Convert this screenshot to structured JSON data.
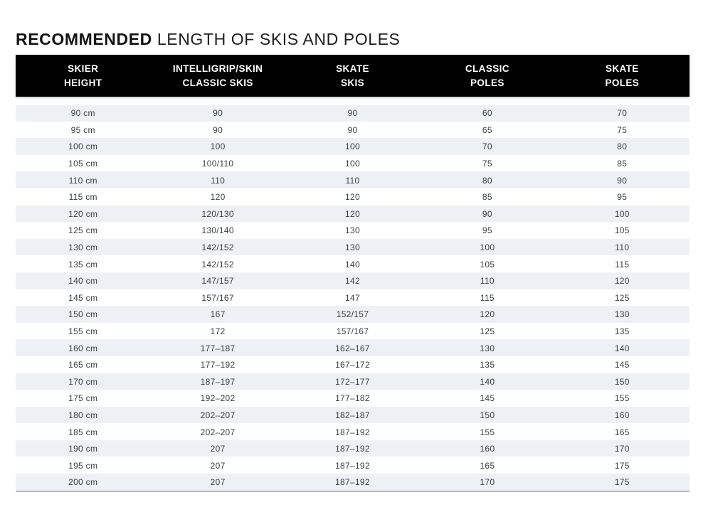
{
  "title": {
    "bold": "RECOMMENDED",
    "light": "LENGTH OF SKIS AND POLES"
  },
  "table": {
    "headers": [
      {
        "label": "SKIER\nHEIGHT"
      },
      {
        "label": "INTELLIGRIP/SKIN\nCLASSIC SKIS"
      },
      {
        "label": "SKATE\nSKIS"
      },
      {
        "label": "CLASSIC\nPOLES"
      },
      {
        "label": "SKATE\nPOLES"
      }
    ],
    "rows": [
      [
        "90 cm",
        "90",
        "90",
        "60",
        "70"
      ],
      [
        "95 cm",
        "90",
        "90",
        "65",
        "75"
      ],
      [
        "100 cm",
        "100",
        "100",
        "70",
        "80"
      ],
      [
        "105 cm",
        "100/110",
        "100",
        "75",
        "85"
      ],
      [
        "110 cm",
        "110",
        "110",
        "80",
        "90"
      ],
      [
        "115 cm",
        "120",
        "120",
        "85",
        "95"
      ],
      [
        "120 cm",
        "120/130",
        "120",
        "90",
        "100"
      ],
      [
        "125 cm",
        "130/140",
        "130",
        "95",
        "105"
      ],
      [
        "130 cm",
        "142/152",
        "130",
        "100",
        "110"
      ],
      [
        "135 cm",
        "142/152",
        "140",
        "105",
        "115"
      ],
      [
        "140 cm",
        "147/157",
        "142",
        "110",
        "120"
      ],
      [
        "145 cm",
        "157/167",
        "147",
        "115",
        "125"
      ],
      [
        "150 cm",
        "167",
        "152/157",
        "120",
        "130"
      ],
      [
        "155 cm",
        "172",
        "157/167",
        "125",
        "135"
      ],
      [
        "160 cm",
        "177–187",
        "162–167",
        "130",
        "140"
      ],
      [
        "165 cm",
        "177–192",
        "167–172",
        "135",
        "145"
      ],
      [
        "170 cm",
        "187–197",
        "172–177",
        "140",
        "150"
      ],
      [
        "175 cm",
        "192–202",
        "177–182",
        "145",
        "155"
      ],
      [
        "180 cm",
        "202–207",
        "182–187",
        "150",
        "160"
      ],
      [
        "185 cm",
        "202–207",
        "187–192",
        "155",
        "165"
      ],
      [
        "190 cm",
        "207",
        "187–192",
        "160",
        "170"
      ],
      [
        "195 cm",
        "207",
        "187–192",
        "165",
        "175"
      ],
      [
        "200 cm",
        "207",
        "187–192",
        "170",
        "175"
      ]
    ]
  },
  "colors": {
    "header_bg": "#000000",
    "header_text": "#ffffff",
    "row_stripe": "#edf1f5",
    "cell_text": "#383d42",
    "table_bottom_border": "#b3bac1"
  }
}
